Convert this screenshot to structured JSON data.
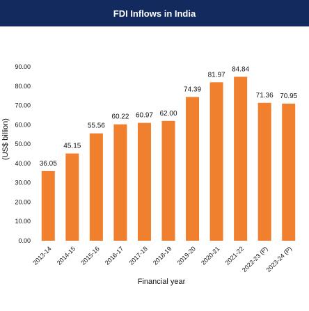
{
  "chart_data": {
    "type": "bar",
    "title": "FDI Inflows in India",
    "xlabel": "Financial year",
    "ylabel": "(US$ billion)",
    "categories": [
      "2013-14",
      "2014-15",
      "2015-16",
      "2016-17",
      "2017-18",
      "2018-19",
      "2019-20",
      "2020-21",
      "2021-22",
      "2022-23 (P)",
      "2023-24 (P)"
    ],
    "values": [
      36.05,
      45.15,
      55.56,
      60.22,
      60.97,
      62.0,
      74.39,
      81.97,
      84.84,
      71.36,
      70.95
    ],
    "value_labels": [
      "36.05",
      "45.15",
      "55.56",
      "60.22",
      "60.97",
      "62.00",
      "74.39",
      "81.97",
      "84.84",
      "71.36",
      "70.95"
    ],
    "ylim": [
      0,
      90
    ],
    "yticks": [
      "0.00",
      "10.00",
      "20.00",
      "30.00",
      "40.00",
      "50.00",
      "60.00",
      "70.00",
      "80.00",
      "90.00"
    ],
    "bar_color": "#f07f2e",
    "header_color": "#132a5e",
    "grid": false
  }
}
